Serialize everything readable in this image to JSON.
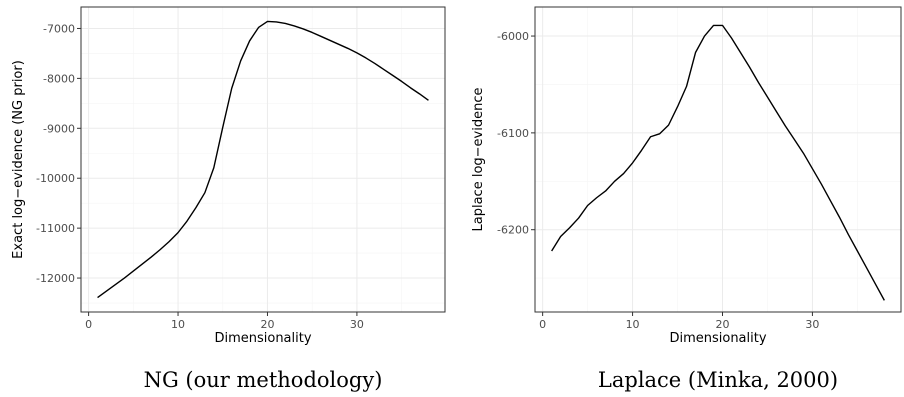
{
  "chart_data": [
    {
      "type": "line",
      "xlabel": "Dimensionality",
      "ylabel": "Exact log−evidence (NG prior)",
      "caption": "NG (our methodology)",
      "xlim": [
        -0.85,
        39.85
      ],
      "ylim": [
        -12680,
        -6570
      ],
      "x_ticks": [
        0,
        10,
        20,
        30
      ],
      "x_tick_labels": [
        "0",
        "10",
        "20",
        "30"
      ],
      "y_ticks": [
        -12000,
        -11000,
        -10000,
        -9000,
        -8000,
        -7000
      ],
      "y_tick_labels": [
        "-12000",
        "-11000",
        "-10000",
        "-9000",
        "-8000",
        "-7000"
      ],
      "grid": true,
      "series": [
        {
          "color": "#000000",
          "x": [
            1,
            2,
            3,
            4,
            5,
            6,
            7,
            8,
            9,
            10,
            11,
            12,
            13,
            14,
            15,
            16,
            17,
            18,
            19,
            20,
            21,
            22,
            23,
            24,
            25,
            26,
            27,
            28,
            29,
            30,
            31,
            32,
            33,
            34,
            35,
            36,
            37,
            38
          ],
          "y": [
            -12390,
            -12260,
            -12130,
            -12000,
            -11860,
            -11720,
            -11580,
            -11430,
            -11270,
            -11090,
            -10860,
            -10590,
            -10290,
            -9790,
            -8980,
            -8200,
            -7650,
            -7250,
            -6980,
            -6860,
            -6870,
            -6900,
            -6950,
            -7010,
            -7080,
            -7160,
            -7240,
            -7320,
            -7400,
            -7490,
            -7590,
            -7700,
            -7820,
            -7940,
            -8060,
            -8190,
            -8310,
            -8440
          ]
        }
      ]
    },
    {
      "type": "line",
      "xlabel": "Dimensionality",
      "ylabel": "Laplace log−evidence",
      "caption": "Laplace (Minka, 2000)",
      "xlim": [
        -0.85,
        39.85
      ],
      "ylim": [
        -6285,
        -5970
      ],
      "x_ticks": [
        0,
        10,
        20,
        30
      ],
      "x_tick_labels": [
        "0",
        "10",
        "20",
        "30"
      ],
      "y_ticks": [
        -6200,
        -6100,
        -6000
      ],
      "y_tick_labels": [
        "-6200",
        "-6100",
        "-6000"
      ],
      "grid": true,
      "series": [
        {
          "color": "#000000",
          "x": [
            1,
            2,
            3,
            4,
            5,
            6,
            7,
            8,
            9,
            10,
            11,
            12,
            13,
            14,
            15,
            16,
            17,
            18,
            19,
            20,
            21,
            22,
            23,
            24,
            25,
            26,
            27,
            28,
            29,
            30,
            31,
            32,
            33,
            34,
            35,
            36,
            37,
            38
          ],
          "y": [
            -6222,
            -6207,
            -6198,
            -6188,
            -6175,
            -6167,
            -6160,
            -6150,
            -6142,
            -6131,
            -6118,
            -6104,
            -6101,
            -6092,
            -6073,
            -6052,
            -6017,
            -6000,
            -5989,
            -5989,
            -6002,
            -6017,
            -6032,
            -6048,
            -6063,
            -6078,
            -6093,
            -6107,
            -6121,
            -6137,
            -6153,
            -6170,
            -6187,
            -6205,
            -6222,
            -6239,
            -6256,
            -6273
          ]
        }
      ]
    }
  ]
}
